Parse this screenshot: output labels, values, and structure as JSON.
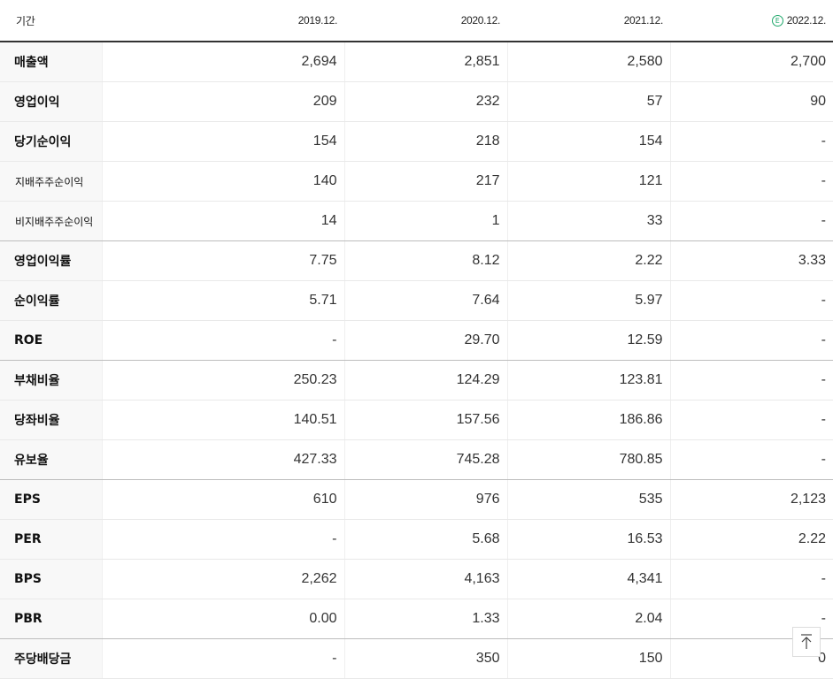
{
  "header": {
    "period_label": "기간",
    "estimate_mark": "E",
    "years": [
      "2019.12.",
      "2020.12.",
      "2021.12.",
      "2022.12."
    ]
  },
  "rows": [
    {
      "label": "매출액",
      "values": [
        "2,694",
        "2,851",
        "2,580",
        "2,700"
      ]
    },
    {
      "label": "영업이익",
      "values": [
        "209",
        "232",
        "57",
        "90"
      ]
    },
    {
      "label": "당기순이익",
      "values": [
        "154",
        "218",
        "154",
        "-"
      ]
    },
    {
      "label": "지배주주순이익",
      "values": [
        "140",
        "217",
        "121",
        "-"
      ]
    },
    {
      "label": "비지배주주순이익",
      "values": [
        "14",
        "1",
        "33",
        "-"
      ]
    },
    {
      "label": "영업이익률",
      "values": [
        "7.75",
        "8.12",
        "2.22",
        "3.33"
      ]
    },
    {
      "label": "순이익률",
      "values": [
        "5.71",
        "7.64",
        "5.97",
        "-"
      ]
    },
    {
      "label": "ROE",
      "values": [
        "-",
        "29.70",
        "12.59",
        "-"
      ]
    },
    {
      "label": "부채비율",
      "values": [
        "250.23",
        "124.29",
        "123.81",
        "-"
      ]
    },
    {
      "label": "당좌비율",
      "values": [
        "140.51",
        "157.56",
        "186.86",
        "-"
      ]
    },
    {
      "label": "유보율",
      "values": [
        "427.33",
        "745.28",
        "780.85",
        "-"
      ]
    },
    {
      "label": "EPS",
      "values": [
        "610",
        "976",
        "535",
        "2,123"
      ]
    },
    {
      "label": "PER",
      "values": [
        "-",
        "5.68",
        "16.53",
        "2.22"
      ]
    },
    {
      "label": "BPS",
      "values": [
        "2,262",
        "4,163",
        "4,341",
        "-"
      ]
    },
    {
      "label": "PBR",
      "values": [
        "0.00",
        "1.33",
        "2.04",
        "-"
      ]
    },
    {
      "label": "주당배당금",
      "values": [
        "-",
        "350",
        "150",
        "0"
      ]
    }
  ],
  "scroll_top": {
    "icon": "arrow-up-to-top-icon"
  }
}
